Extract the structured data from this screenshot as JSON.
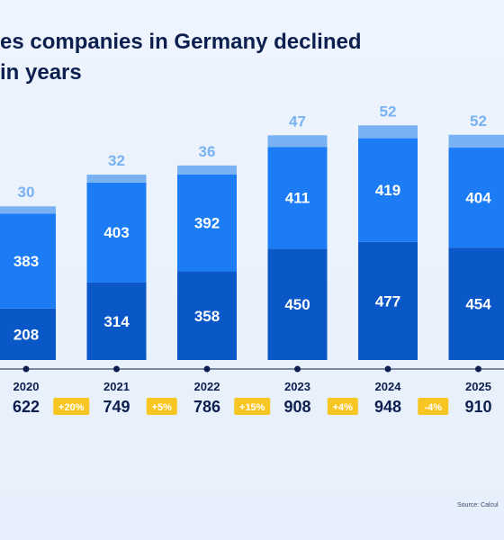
{
  "title": "es companies in Germany declined\nin years",
  "source": "Source: Calcul",
  "colors": {
    "title": "#0d1f4f",
    "bottom": "#0a57c8",
    "middle": "#1b7cf5",
    "top": "#79b2f2",
    "axis": "#0d1f4f",
    "badge": "#f8c623"
  },
  "chart_data": {
    "type": "bar",
    "stacked": true,
    "categories": [
      "2020",
      "2021",
      "2022",
      "2023",
      "2024",
      "2025"
    ],
    "series": [
      {
        "values": [
          208,
          314,
          358,
          450,
          477,
          454
        ]
      },
      {
        "values": [
          383,
          403,
          392,
          411,
          419,
          404
        ]
      },
      {
        "values": [
          30,
          32,
          36,
          47,
          52,
          52
        ]
      }
    ],
    "totals": [
      "622",
      "749",
      "786",
      "908",
      "948",
      "910"
    ],
    "changes": [
      "+20%",
      "+5%",
      "+15%",
      "+4%",
      "-4%"
    ],
    "ylim": [
      0,
      1000
    ],
    "grid": false,
    "legend": "none"
  }
}
